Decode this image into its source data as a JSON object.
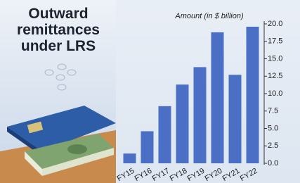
{
  "chart_data": {
    "type": "bar",
    "title": "Outward remittances under LRS",
    "y_axis_label": "Amount (in $ billion)",
    "categories": [
      "FY15",
      "FY16",
      "FY17",
      "FY18",
      "FY19",
      "FY20",
      "FY21",
      "FY22"
    ],
    "values": [
      1.4,
      4.6,
      8.2,
      11.3,
      13.8,
      18.8,
      12.7,
      19.6
    ],
    "color": "#4a6fc4",
    "ylim": [
      0,
      20
    ],
    "yticks": [
      {
        "value": 0,
        "label": "0.0"
      },
      2.5,
      {
        "value": 5,
        "label": "5.0"
      },
      7.5,
      {
        "value": 10,
        "label": "10.0"
      },
      12.5,
      {
        "value": 15,
        "label": "15.0"
      },
      17.5,
      {
        "value": 20,
        "label": "20.0"
      }
    ]
  }
}
